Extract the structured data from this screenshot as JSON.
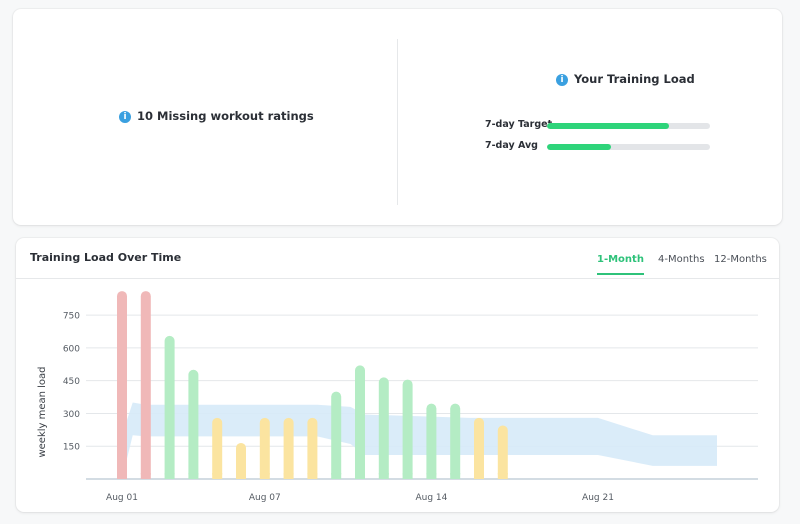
{
  "summary": {
    "missing_ratings_label": "10 Missing workout ratings",
    "info_glyph": "i",
    "training_load_title": "Your Training Load",
    "rows": [
      {
        "label": "7-day Target",
        "fraction": 0.75
      },
      {
        "label": "7-day Avg",
        "fraction": 0.39
      }
    ]
  },
  "chart_panel": {
    "title": "Training Load Over Time",
    "tabs": [
      {
        "label": "1-Month",
        "active": true
      },
      {
        "label": "4-Months",
        "active": false
      },
      {
        "label": "12-Months",
        "active": false
      }
    ]
  },
  "colors": {
    "accent_green": "#2ec27a",
    "bar_red": "#f0b8b8",
    "bar_green": "#b4ecc4",
    "bar_yellow": "#fbe4a0",
    "band_blue": "#d6eaf8",
    "info_blue": "#3aa0e0"
  },
  "chart_data": {
    "type": "bar",
    "title": "",
    "ylabel": "weekly mean load",
    "xlabel": "",
    "ylim": [
      0,
      870
    ],
    "yticks": [
      150,
      300,
      450,
      600,
      750
    ],
    "xtick_labels": [
      {
        "label": "Aug 01",
        "day": 1
      },
      {
        "label": "Aug 07",
        "day": 7
      },
      {
        "label": "Aug 14",
        "day": 14
      },
      {
        "label": "Aug 21",
        "day": 21
      }
    ],
    "grid": true,
    "bars": [
      {
        "day": 1,
        "value": 860,
        "color": "red"
      },
      {
        "day": 2,
        "value": 860,
        "color": "red"
      },
      {
        "day": 3,
        "value": 655,
        "color": "green"
      },
      {
        "day": 4,
        "value": 500,
        "color": "green"
      },
      {
        "day": 5,
        "value": 280,
        "color": "yellow"
      },
      {
        "day": 6,
        "value": 165,
        "color": "yellow"
      },
      {
        "day": 7,
        "value": 280,
        "color": "yellow"
      },
      {
        "day": 8,
        "value": 280,
        "color": "yellow"
      },
      {
        "day": 9,
        "value": 280,
        "color": "yellow"
      },
      {
        "day": 10,
        "value": 400,
        "color": "green"
      },
      {
        "day": 11,
        "value": 520,
        "color": "green"
      },
      {
        "day": 12,
        "value": 465,
        "color": "green"
      },
      {
        "day": 13,
        "value": 455,
        "color": "green"
      },
      {
        "day": 14,
        "value": 345,
        "color": "green"
      },
      {
        "day": 15,
        "value": 345,
        "color": "green"
      },
      {
        "day": 16,
        "value": 280,
        "color": "yellow"
      },
      {
        "day": 17,
        "value": 245,
        "color": "yellow"
      }
    ],
    "band": {
      "x": [
        1,
        1.45,
        2,
        9.2,
        10.6,
        11.2,
        15.6,
        16,
        21,
        23.3,
        26
      ],
      "upper": [
        200,
        350,
        340,
        340,
        330,
        295,
        280,
        280,
        280,
        200,
        200
      ],
      "lower": [
        0,
        200,
        195,
        195,
        160,
        110,
        110,
        110,
        110,
        60,
        60
      ]
    }
  }
}
